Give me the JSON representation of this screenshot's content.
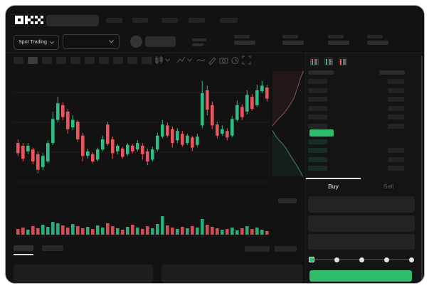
{
  "app": {
    "name": "OKX"
  },
  "colors": {
    "green": "#2EBD85",
    "red": "#E8555C",
    "bright_green": "#2EBD6B",
    "bid_row_tint": "rgba(46,189,133,0.16)",
    "placeholder": "#262626",
    "window_bg": "#121212"
  },
  "header": {
    "logo": "OKX",
    "search_placeholder": "",
    "nav_item_count": 5
  },
  "subheader": {
    "market_type": "Spot Trading",
    "pair_selector_value": "",
    "stat_group_count": 4
  },
  "chart_toolbar": {
    "timeframe_button_count": 10,
    "active_timeframe_index": 1,
    "icons": [
      "candle-style",
      "indicator",
      "line-tool",
      "draw",
      "camera",
      "refresh",
      "fullscreen"
    ]
  },
  "chart_data": {
    "type": "candlestick_with_volume",
    "title": "",
    "x_axis_labels_visible": false,
    "y_axis_labels_visible": false,
    "price_scale_note": "normalized 0-100, no axis labels rendered in screenshot",
    "gridline_count": 4,
    "candles": [
      [
        33,
        37,
        19,
        22
      ],
      [
        30,
        33,
        13,
        16
      ],
      [
        24,
        33,
        21,
        30
      ],
      [
        26,
        28,
        10,
        13
      ],
      [
        21,
        24,
        0,
        4
      ],
      [
        7,
        22,
        4,
        19
      ],
      [
        13,
        36,
        11,
        33
      ],
      [
        33,
        67,
        31,
        59
      ],
      [
        58,
        83,
        55,
        76
      ],
      [
        74,
        77,
        58,
        61
      ],
      [
        67,
        70,
        43,
        48
      ],
      [
        50,
        63,
        47,
        58
      ],
      [
        56,
        58,
        34,
        37
      ],
      [
        41,
        44,
        13,
        19
      ],
      [
        19,
        27,
        16,
        24
      ],
      [
        21,
        23,
        11,
        13
      ],
      [
        15,
        28,
        13,
        26
      ],
      [
        26,
        41,
        24,
        37
      ],
      [
        53,
        56,
        30,
        32
      ],
      [
        37,
        40,
        16,
        22
      ],
      [
        24,
        32,
        21,
        30
      ],
      [
        27,
        29,
        16,
        18
      ],
      [
        21,
        33,
        19,
        31
      ],
      [
        30,
        32,
        22,
        24
      ],
      [
        26,
        36,
        24,
        33
      ],
      [
        30,
        33,
        15,
        21
      ],
      [
        24,
        27,
        9,
        13
      ],
      [
        15,
        29,
        13,
        26
      ],
      [
        26,
        44,
        24,
        41
      ],
      [
        40,
        58,
        38,
        53
      ],
      [
        52,
        55,
        39,
        41
      ],
      [
        48,
        51,
        28,
        33
      ],
      [
        36,
        49,
        33,
        46
      ],
      [
        43,
        46,
        29,
        31
      ],
      [
        33,
        43,
        31,
        41
      ],
      [
        39,
        41,
        24,
        28
      ],
      [
        31,
        43,
        29,
        40
      ],
      [
        52,
        100,
        49,
        87
      ],
      [
        90,
        95,
        63,
        69
      ],
      [
        74,
        78,
        48,
        52
      ],
      [
        53,
        56,
        38,
        41
      ],
      [
        43,
        52,
        41,
        48
      ],
      [
        46,
        49,
        36,
        39
      ],
      [
        41,
        62,
        39,
        59
      ],
      [
        58,
        79,
        56,
        74
      ],
      [
        72,
        75,
        58,
        61
      ],
      [
        67,
        90,
        64,
        85
      ],
      [
        83,
        86,
        68,
        70
      ],
      [
        74,
        96,
        72,
        90
      ],
      [
        89,
        100,
        87,
        95
      ],
      [
        93,
        96,
        78,
        81
      ]
    ],
    "volumes": [
      8,
      10,
      7,
      12,
      9,
      14,
      11,
      18,
      16,
      13,
      10,
      15,
      12,
      9,
      11,
      8,
      13,
      10,
      16,
      12,
      9,
      7,
      11,
      14,
      10,
      8,
      12,
      9,
      15,
      26,
      13,
      10,
      8,
      11,
      9,
      12,
      10,
      22,
      14,
      11,
      9,
      7,
      8,
      10,
      6,
      9,
      12,
      8,
      10,
      7,
      5
    ]
  },
  "depth_chart": {
    "asks_line": [
      [
        0.97,
        0.03
      ],
      [
        0.88,
        0.09
      ],
      [
        0.82,
        0.15
      ],
      [
        0.75,
        0.21
      ],
      [
        0.68,
        0.27
      ],
      [
        0.58,
        0.32
      ],
      [
        0.47,
        0.37
      ],
      [
        0.36,
        0.41
      ],
      [
        0.22,
        0.45
      ],
      [
        0.1,
        0.49
      ],
      [
        0.02,
        0.52
      ]
    ],
    "bids_line": [
      [
        0.02,
        0.56
      ],
      [
        0.1,
        0.6
      ],
      [
        0.2,
        0.64
      ],
      [
        0.33,
        0.68
      ],
      [
        0.44,
        0.72
      ],
      [
        0.54,
        0.77
      ],
      [
        0.65,
        0.82
      ],
      [
        0.76,
        0.87
      ],
      [
        0.86,
        0.92
      ],
      [
        0.95,
        0.97
      ]
    ],
    "ask_line_color": "#8a5454",
    "bid_line_color": "#47836f"
  },
  "order_book": {
    "view_modes": [
      "book-combined",
      "book-bids-only",
      "book-asks-only"
    ],
    "header_column_count": 2,
    "ask_row_count": 6,
    "last_price_highlight_color": "#2EBD6B",
    "bid_rows_amount_visible": [
      false,
      true,
      true,
      true
    ]
  },
  "trade_panel": {
    "tabs": [
      {
        "label": "Buy",
        "active": true
      },
      {
        "label": "Sell",
        "active": false
      }
    ],
    "field_count": 3,
    "slider": {
      "stops": [
        0,
        25,
        50,
        75,
        100
      ],
      "active_stop_index": 0
    },
    "submit_label": ""
  },
  "bottom_bar": {
    "left_tab_count": 2,
    "active_left_tab_index": 0,
    "right_tab_count": 2,
    "panel_count": 2
  }
}
